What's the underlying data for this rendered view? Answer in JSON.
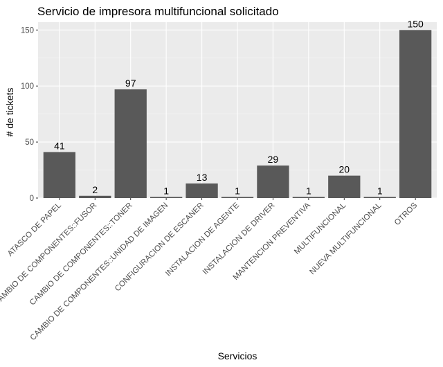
{
  "chart_data": {
    "type": "bar",
    "title": "Servicio de impresora multifuncional solicitado",
    "xlabel": "Servicios",
    "ylabel": "# de tickets",
    "categories": [
      "ATASCO DE PAPEL",
      "CAMBIO DE COMPONENTES::FUSOR",
      "CAMBIO DE COMPONENTES::TONER",
      "CAMBIO DE COMPONENTES::UNIDAD DE IMAGEN",
      "CONFIGURACION DE ESCANER",
      "INSTALACION DE AGENTE",
      "INSTALACION DE DRIVER",
      "MANTENCION PREVENTIVA",
      "MULTIFUNCIONAL",
      "NUEVA MULTIFUNCIONAL",
      "OTROS"
    ],
    "values": [
      41,
      2,
      97,
      1,
      13,
      1,
      29,
      1,
      20,
      1,
      150
    ],
    "ylim": [
      0,
      157
    ],
    "yticks": [
      0,
      50,
      100,
      150
    ],
    "grid": true,
    "colors": {
      "bar": "#595959",
      "panel": "#ebebeb",
      "grid_major": "#ffffff",
      "grid_minor": "#f5f5f5",
      "tick": "#333333"
    }
  }
}
